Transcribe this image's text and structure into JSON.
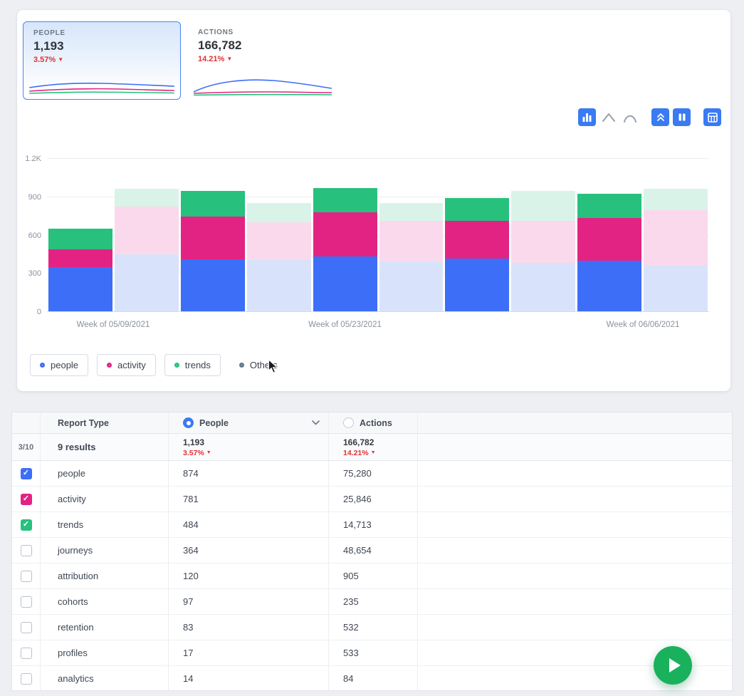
{
  "colors": {
    "accent_blue": "#3d6ef7",
    "accent_pink": "#e32383",
    "accent_green": "#27c17d",
    "muted_blue": "#d8e3fb",
    "muted_pink": "#fad9ec",
    "muted_green": "#daf3e8",
    "delta_red": "#e03232",
    "fab_green": "#19b15c"
  },
  "icons": {
    "trend_down": "▼",
    "check": "✓"
  },
  "metric_cards": [
    {
      "label": "PEOPLE",
      "value": "1,193",
      "delta": "3.57%",
      "selected": true
    },
    {
      "label": "ACTIONS",
      "value": "166,782",
      "delta": "14.21%",
      "selected": false
    }
  ],
  "toolbar": {
    "buttons": [
      "bar-chart",
      "line-chart",
      "curve-chart",
      "stacked-toggle",
      "bar-values",
      "table-view"
    ],
    "active": "bar-chart"
  },
  "chart_data": {
    "type": "bar",
    "stacked": true,
    "grid": true,
    "ylim": [
      0,
      1200
    ],
    "y_ticks": [
      {
        "label": "0",
        "value": 0
      },
      {
        "label": "300",
        "value": 300
      },
      {
        "label": "600",
        "value": 600
      },
      {
        "label": "900",
        "value": 900
      },
      {
        "label": "1.2K",
        "value": 1200
      }
    ],
    "x_axis_labels": [
      {
        "label": "Week of 05/09/2021",
        "pos_pct": 10
      },
      {
        "label": "Week of 05/23/2021",
        "pos_pct": 45
      },
      {
        "label": "Week of 06/06/2021",
        "pos_pct": 90
      }
    ],
    "series_names": [
      "people",
      "activity",
      "trends"
    ],
    "bars": [
      {
        "people": 345,
        "activity": 140,
        "trends": 160,
        "muted": false
      },
      {
        "people": 445,
        "activity": 375,
        "trends": 140,
        "muted": true
      },
      {
        "people": 410,
        "activity": 330,
        "trends": 205,
        "muted": false
      },
      {
        "people": 400,
        "activity": 300,
        "trends": 150,
        "muted": true
      },
      {
        "people": 430,
        "activity": 345,
        "trends": 190,
        "muted": false
      },
      {
        "people": 390,
        "activity": 320,
        "trends": 140,
        "muted": true
      },
      {
        "people": 415,
        "activity": 295,
        "trends": 175,
        "muted": false
      },
      {
        "people": 380,
        "activity": 330,
        "trends": 235,
        "muted": true
      },
      {
        "people": 395,
        "activity": 335,
        "trends": 190,
        "muted": false
      },
      {
        "people": 365,
        "activity": 430,
        "trends": 165,
        "muted": true
      }
    ],
    "legend": [
      {
        "label": "people",
        "color": "#3d6ef7",
        "boxed": true
      },
      {
        "label": "activity",
        "color": "#e32383",
        "boxed": true
      },
      {
        "label": "trends",
        "color": "#27c17d",
        "boxed": true
      },
      {
        "label": "Others",
        "color": "#64788a",
        "boxed": false
      }
    ],
    "legend_position": "bottom"
  },
  "table": {
    "columns": {
      "report_type": "Report Type",
      "people": "People",
      "actions": "Actions"
    },
    "summary": {
      "selected_count": "3/10",
      "results": "9 results",
      "people_value": "1,193",
      "people_delta": "3.57%",
      "actions_value": "166,782",
      "actions_delta": "14.21%"
    },
    "rows": [
      {
        "label": "people",
        "people": "874",
        "actions": "75,280",
        "checked": true,
        "check_color": "#3d6ef7"
      },
      {
        "label": "activity",
        "people": "781",
        "actions": "25,846",
        "checked": true,
        "check_color": "#e32383"
      },
      {
        "label": "trends",
        "people": "484",
        "actions": "14,713",
        "checked": true,
        "check_color": "#27c17d"
      },
      {
        "label": "journeys",
        "people": "364",
        "actions": "48,654",
        "checked": false,
        "check_color": ""
      },
      {
        "label": "attribution",
        "people": "120",
        "actions": "905",
        "checked": false,
        "check_color": ""
      },
      {
        "label": "cohorts",
        "people": "97",
        "actions": "235",
        "checked": false,
        "check_color": ""
      },
      {
        "label": "retention",
        "people": "83",
        "actions": "532",
        "checked": false,
        "check_color": ""
      },
      {
        "label": "profiles",
        "people": "17",
        "actions": "533",
        "checked": false,
        "check_color": ""
      },
      {
        "label": "analytics",
        "people": "14",
        "actions": "84",
        "checked": false,
        "check_color": ""
      }
    ]
  }
}
